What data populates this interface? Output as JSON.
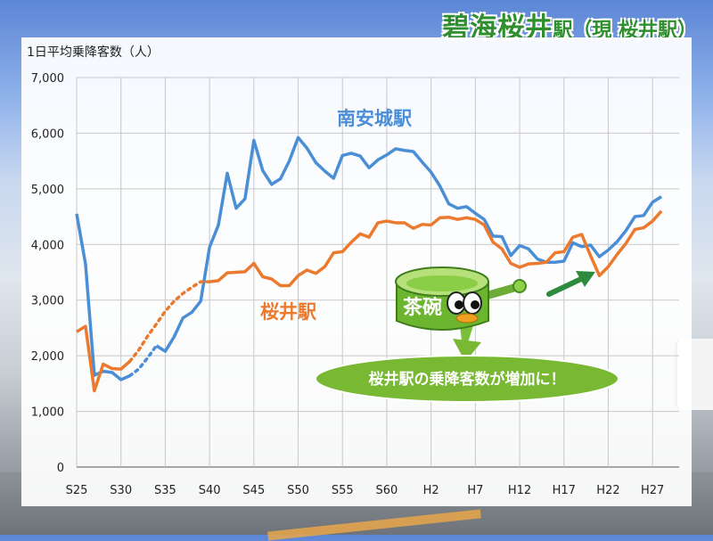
{
  "header": {
    "title_main": "碧海桜井",
    "title_suffix": "駅",
    "title_note": "（現 桜井駅）"
  },
  "callout": {
    "text": "桜井駅の乗降客数が増加に！"
  },
  "mascot": {
    "label": "茶碗"
  },
  "colors": {
    "minami": "#4a8fd6",
    "sakurai": "#ec7a2e",
    "title": "#2f8f2f",
    "callout": "#78b833",
    "arrow": "#2e8b3e"
  },
  "chart_data": {
    "type": "line",
    "ylabel": "1日平均乗降客数（人）",
    "ylim": [
      0,
      7000
    ],
    "yticks": [
      "0",
      "1,000",
      "2,000",
      "3,000",
      "4,000",
      "5,000",
      "6,000",
      "7,000"
    ],
    "ytick_values": [
      0,
      1000,
      2000,
      3000,
      4000,
      5000,
      6000,
      7000
    ],
    "x_index_range": [
      0,
      68
    ],
    "xticks": [
      {
        "i": 0,
        "label": "S25"
      },
      {
        "i": 5,
        "label": "S30"
      },
      {
        "i": 10,
        "label": "S35"
      },
      {
        "i": 15,
        "label": "S40"
      },
      {
        "i": 20,
        "label": "S45"
      },
      {
        "i": 25,
        "label": "S50"
      },
      {
        "i": 30,
        "label": "S55"
      },
      {
        "i": 35,
        "label": "S60"
      },
      {
        "i": 40,
        "label": "H2"
      },
      {
        "i": 45,
        "label": "H7"
      },
      {
        "i": 50,
        "label": "H12"
      },
      {
        "i": 55,
        "label": "H17"
      },
      {
        "i": 60,
        "label": "H22"
      },
      {
        "i": 65,
        "label": "H27"
      }
    ],
    "series": [
      {
        "name": "南安城駅",
        "key": "minami",
        "points": [
          [
            0,
            4550
          ],
          [
            1,
            3650
          ],
          [
            2,
            1650
          ],
          [
            3,
            1720
          ],
          [
            4,
            1700
          ],
          [
            5,
            1570
          ],
          [
            6,
            1640
          ],
          [
            6,
            1640
          ],
          [
            9,
            2180
          ],
          [
            10,
            2080
          ],
          [
            11,
            2340
          ],
          [
            12,
            2680
          ],
          [
            13,
            2780
          ],
          [
            14,
            2980
          ],
          [
            15,
            3950
          ],
          [
            16,
            4350
          ],
          [
            17,
            5280
          ],
          [
            18,
            4650
          ],
          [
            19,
            4820
          ],
          [
            20,
            5870
          ],
          [
            21,
            5330
          ],
          [
            22,
            5080
          ],
          [
            23,
            5180
          ],
          [
            24,
            5500
          ],
          [
            25,
            5920
          ],
          [
            26,
            5730
          ],
          [
            27,
            5470
          ],
          [
            28,
            5320
          ],
          [
            29,
            5190
          ],
          [
            30,
            5600
          ],
          [
            31,
            5640
          ],
          [
            32,
            5590
          ],
          [
            33,
            5380
          ],
          [
            34,
            5520
          ],
          [
            35,
            5610
          ],
          [
            36,
            5720
          ],
          [
            37,
            5690
          ],
          [
            38,
            5670
          ],
          [
            39,
            5480
          ],
          [
            40,
            5300
          ],
          [
            41,
            5050
          ],
          [
            42,
            4730
          ],
          [
            43,
            4650
          ],
          [
            44,
            4680
          ],
          [
            45,
            4560
          ],
          [
            46,
            4450
          ],
          [
            47,
            4150
          ],
          [
            48,
            4140
          ],
          [
            49,
            3800
          ],
          [
            50,
            3980
          ],
          [
            51,
            3920
          ],
          [
            52,
            3740
          ],
          [
            53,
            3680
          ],
          [
            54,
            3680
          ],
          [
            55,
            3700
          ],
          [
            56,
            4030
          ],
          [
            57,
            3960
          ],
          [
            58,
            3990
          ],
          [
            59,
            3780
          ],
          [
            60,
            3900
          ],
          [
            61,
            4050
          ],
          [
            62,
            4250
          ],
          [
            63,
            4500
          ],
          [
            64,
            4520
          ],
          [
            65,
            4760
          ],
          [
            66,
            4860
          ]
        ],
        "dotted": [
          [
            6,
            1640
          ],
          [
            7,
            1760
          ],
          [
            8,
            1960
          ],
          [
            9,
            2180
          ]
        ]
      },
      {
        "name": "桜井駅",
        "key": "sakurai",
        "points": [
          [
            0,
            2430
          ],
          [
            1,
            2530
          ],
          [
            2,
            1370
          ],
          [
            3,
            1850
          ],
          [
            4,
            1770
          ],
          [
            5,
            1760
          ],
          [
            6,
            1900
          ],
          [
            15,
            3330
          ],
          [
            16,
            3350
          ],
          [
            17,
            3490
          ],
          [
            18,
            3500
          ],
          [
            19,
            3510
          ],
          [
            20,
            3660
          ],
          [
            21,
            3420
          ],
          [
            22,
            3380
          ],
          [
            23,
            3260
          ],
          [
            24,
            3260
          ],
          [
            25,
            3440
          ],
          [
            26,
            3540
          ],
          [
            27,
            3480
          ],
          [
            28,
            3600
          ],
          [
            29,
            3850
          ],
          [
            30,
            3870
          ],
          [
            31,
            4040
          ],
          [
            32,
            4190
          ],
          [
            33,
            4130
          ],
          [
            34,
            4390
          ],
          [
            35,
            4420
          ],
          [
            36,
            4390
          ],
          [
            37,
            4390
          ],
          [
            38,
            4290
          ],
          [
            39,
            4360
          ],
          [
            40,
            4350
          ],
          [
            41,
            4480
          ],
          [
            42,
            4490
          ],
          [
            43,
            4450
          ],
          [
            44,
            4480
          ],
          [
            45,
            4450
          ],
          [
            46,
            4350
          ],
          [
            47,
            4040
          ],
          [
            48,
            3920
          ],
          [
            49,
            3660
          ],
          [
            50,
            3590
          ],
          [
            51,
            3650
          ],
          [
            52,
            3660
          ],
          [
            53,
            3680
          ],
          [
            54,
            3850
          ],
          [
            55,
            3870
          ],
          [
            56,
            4130
          ],
          [
            57,
            4180
          ],
          [
            58,
            3800
          ],
          [
            59,
            3440
          ],
          [
            60,
            3600
          ],
          [
            61,
            3820
          ],
          [
            62,
            4020
          ],
          [
            63,
            4270
          ],
          [
            64,
            4300
          ],
          [
            65,
            4420
          ],
          [
            66,
            4600
          ]
        ],
        "dotted": [
          [
            6,
            1900
          ],
          [
            7,
            2100
          ],
          [
            8,
            2350
          ],
          [
            9,
            2570
          ],
          [
            10,
            2800
          ],
          [
            11,
            2980
          ],
          [
            12,
            3120
          ],
          [
            13,
            3230
          ],
          [
            14,
            3330
          ],
          [
            15,
            3330
          ]
        ]
      }
    ]
  }
}
